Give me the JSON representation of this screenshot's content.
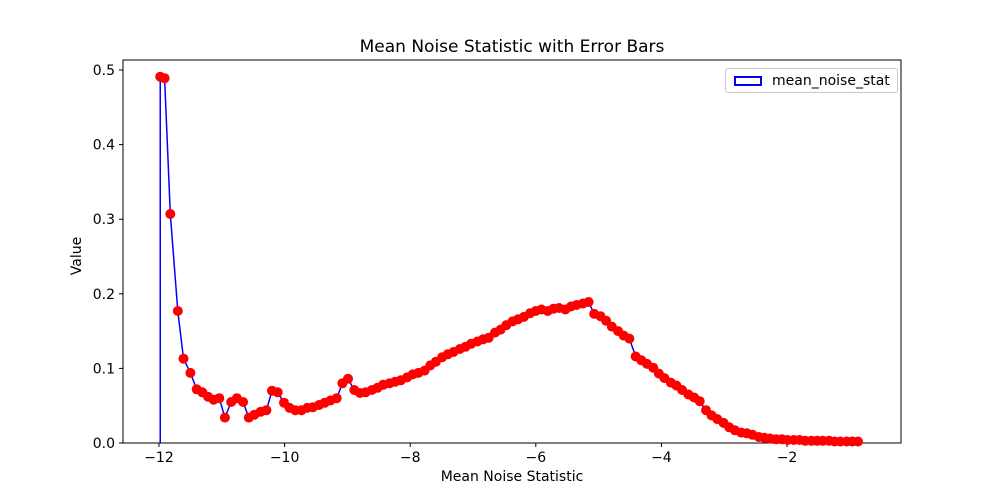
{
  "chart_data": {
    "type": "line",
    "title": "Mean Noise Statistic with Error Bars",
    "xlabel": "Mean Noise Statistic",
    "ylabel": "Value",
    "xlim": [
      -12.573,
      -0.185
    ],
    "ylim": [
      0,
      0.5134
    ],
    "xticks": [
      -12,
      -10,
      -8,
      -6,
      -4,
      -2
    ],
    "xtick_labels": [
      "−12",
      "−10",
      "−8",
      "−6",
      "−4",
      "−2"
    ],
    "yticks": [
      0.0,
      0.1,
      0.2,
      0.3,
      0.4,
      0.5
    ],
    "ytick_labels": [
      "0.0",
      "0.1",
      "0.2",
      "0.3",
      "0.4",
      "0.5"
    ],
    "grid": false,
    "legend": {
      "entries": [
        "mean_noise_stat"
      ],
      "position": "upper right"
    },
    "colors": {
      "marker": "#ff0000",
      "line": "#0000ff",
      "axis": "#000000",
      "legend_border": "#c8c8c8",
      "background": "#ffffff"
    },
    "leading_drop_line": {
      "x": -11.98,
      "y_from": 0.0,
      "y_to": 0.491
    },
    "series": [
      {
        "name": "mean_noise_stat",
        "marker": "circle",
        "marker_color": "#ff0000",
        "line_color": "#0000ff",
        "points": [
          [
            -11.98,
            0.491
          ],
          [
            -11.91,
            0.489
          ],
          [
            -11.82,
            0.307
          ],
          [
            -11.7,
            0.177
          ],
          [
            -11.61,
            0.113
          ],
          [
            -11.5,
            0.094
          ],
          [
            -11.4,
            0.072
          ],
          [
            -11.31,
            0.068
          ],
          [
            -11.22,
            0.062
          ],
          [
            -11.13,
            0.058
          ],
          [
            -11.04,
            0.06
          ],
          [
            -10.95,
            0.034
          ],
          [
            -10.85,
            0.055
          ],
          [
            -10.76,
            0.06
          ],
          [
            -10.66,
            0.055
          ],
          [
            -10.57,
            0.034
          ],
          [
            -10.48,
            0.038
          ],
          [
            -10.38,
            0.042
          ],
          [
            -10.29,
            0.044
          ],
          [
            -10.2,
            0.07
          ],
          [
            -10.11,
            0.068
          ],
          [
            -10.01,
            0.054
          ],
          [
            -9.92,
            0.047
          ],
          [
            -9.83,
            0.044
          ],
          [
            -9.73,
            0.044
          ],
          [
            -9.64,
            0.047
          ],
          [
            -9.55,
            0.048
          ],
          [
            -9.45,
            0.051
          ],
          [
            -9.36,
            0.054
          ],
          [
            -9.27,
            0.057
          ],
          [
            -9.17,
            0.06
          ],
          [
            -9.08,
            0.08
          ],
          [
            -8.99,
            0.086
          ],
          [
            -8.89,
            0.071
          ],
          [
            -8.8,
            0.067
          ],
          [
            -8.71,
            0.068
          ],
          [
            -8.61,
            0.071
          ],
          [
            -8.52,
            0.074
          ],
          [
            -8.43,
            0.078
          ],
          [
            -8.33,
            0.08
          ],
          [
            -8.24,
            0.082
          ],
          [
            -8.15,
            0.084
          ],
          [
            -8.05,
            0.088
          ],
          [
            -7.96,
            0.092
          ],
          [
            -7.87,
            0.094
          ],
          [
            -7.77,
            0.097
          ],
          [
            -7.68,
            0.104
          ],
          [
            -7.59,
            0.109
          ],
          [
            -7.49,
            0.115
          ],
          [
            -7.4,
            0.119
          ],
          [
            -7.31,
            0.122
          ],
          [
            -7.21,
            0.126
          ],
          [
            -7.12,
            0.129
          ],
          [
            -7.03,
            0.133
          ],
          [
            -6.93,
            0.136
          ],
          [
            -6.84,
            0.139
          ],
          [
            -6.75,
            0.141
          ],
          [
            -6.65,
            0.148
          ],
          [
            -6.56,
            0.152
          ],
          [
            -6.47,
            0.158
          ],
          [
            -6.37,
            0.163
          ],
          [
            -6.28,
            0.166
          ],
          [
            -6.19,
            0.169
          ],
          [
            -6.09,
            0.174
          ],
          [
            -6.0,
            0.177
          ],
          [
            -5.91,
            0.179
          ],
          [
            -5.81,
            0.177
          ],
          [
            -5.72,
            0.18
          ],
          [
            -5.63,
            0.181
          ],
          [
            -5.53,
            0.179
          ],
          [
            -5.44,
            0.183
          ],
          [
            -5.35,
            0.185
          ],
          [
            -5.25,
            0.187
          ],
          [
            -5.16,
            0.189
          ],
          [
            -5.07,
            0.173
          ],
          [
            -4.97,
            0.17
          ],
          [
            -4.88,
            0.164
          ],
          [
            -4.79,
            0.156
          ],
          [
            -4.69,
            0.15
          ],
          [
            -4.6,
            0.144
          ],
          [
            -4.51,
            0.14
          ],
          [
            -4.41,
            0.116
          ],
          [
            -4.32,
            0.111
          ],
          [
            -4.23,
            0.106
          ],
          [
            -4.13,
            0.101
          ],
          [
            -4.04,
            0.093
          ],
          [
            -3.95,
            0.087
          ],
          [
            -3.85,
            0.081
          ],
          [
            -3.76,
            0.077
          ],
          [
            -3.67,
            0.071
          ],
          [
            -3.57,
            0.065
          ],
          [
            -3.48,
            0.061
          ],
          [
            -3.39,
            0.056
          ],
          [
            -3.29,
            0.044
          ],
          [
            -3.2,
            0.037
          ],
          [
            -3.11,
            0.032
          ],
          [
            -3.01,
            0.027
          ],
          [
            -2.92,
            0.021
          ],
          [
            -2.83,
            0.017
          ],
          [
            -2.73,
            0.014
          ],
          [
            -2.64,
            0.013
          ],
          [
            -2.55,
            0.011
          ],
          [
            -2.45,
            0.008
          ],
          [
            -2.36,
            0.007
          ],
          [
            -2.27,
            0.006
          ],
          [
            -2.17,
            0.005
          ],
          [
            -2.08,
            0.005
          ],
          [
            -1.99,
            0.004
          ],
          [
            -1.89,
            0.004
          ],
          [
            -1.8,
            0.004
          ],
          [
            -1.71,
            0.003
          ],
          [
            -1.61,
            0.003
          ],
          [
            -1.52,
            0.003
          ],
          [
            -1.43,
            0.003
          ],
          [
            -1.33,
            0.003
          ],
          [
            -1.24,
            0.002
          ],
          [
            -1.15,
            0.002
          ],
          [
            -1.05,
            0.002
          ],
          [
            -0.96,
            0.002
          ],
          [
            -0.87,
            0.002
          ]
        ]
      }
    ]
  }
}
